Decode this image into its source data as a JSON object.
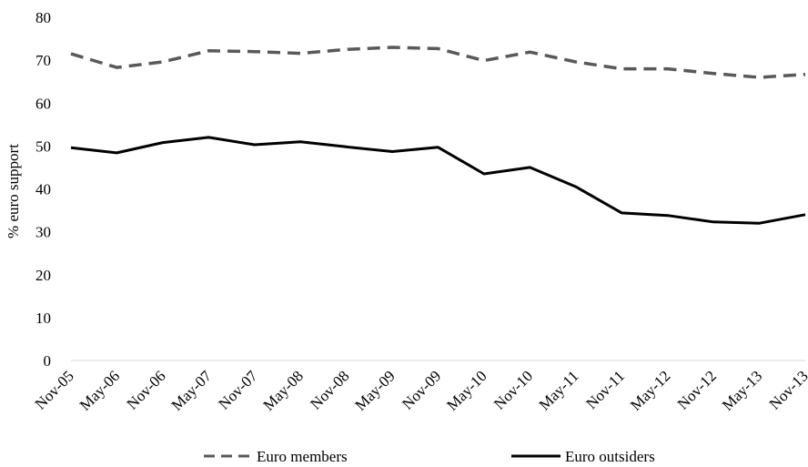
{
  "chart_data": {
    "type": "line",
    "title": "",
    "xlabel": "",
    "ylabel": "% euro support",
    "ylim": [
      0,
      80
    ],
    "yticks": [
      0,
      10,
      20,
      30,
      40,
      50,
      60,
      70,
      80
    ],
    "grid": false,
    "legend_position": "bottom",
    "categories": [
      "Nov-05",
      "May-06",
      "Nov-06",
      "May-07",
      "Nov-07",
      "May-08",
      "Nov-08",
      "May-09",
      "Nov-09",
      "May-10",
      "Nov-10",
      "May-11",
      "Nov-11",
      "May-12",
      "Nov-12",
      "May-13",
      "Nov-13"
    ],
    "series": [
      {
        "name": "Euro members",
        "style": "dashed",
        "color": "#595959",
        "values": [
          71.5,
          68.3,
          69.6,
          72.2,
          72.0,
          71.6,
          72.5,
          73.0,
          72.7,
          69.9,
          71.9,
          69.6,
          68.0,
          68.0,
          66.9,
          66.0,
          66.7
        ]
      },
      {
        "name": "Euro outsiders",
        "style": "solid",
        "color": "#000000",
        "values": [
          49.6,
          48.4,
          50.8,
          52.0,
          50.3,
          51.0,
          49.8,
          48.7,
          49.7,
          43.5,
          45.0,
          40.5,
          34.4,
          33.8,
          32.3,
          32.0,
          34.0
        ]
      }
    ]
  }
}
